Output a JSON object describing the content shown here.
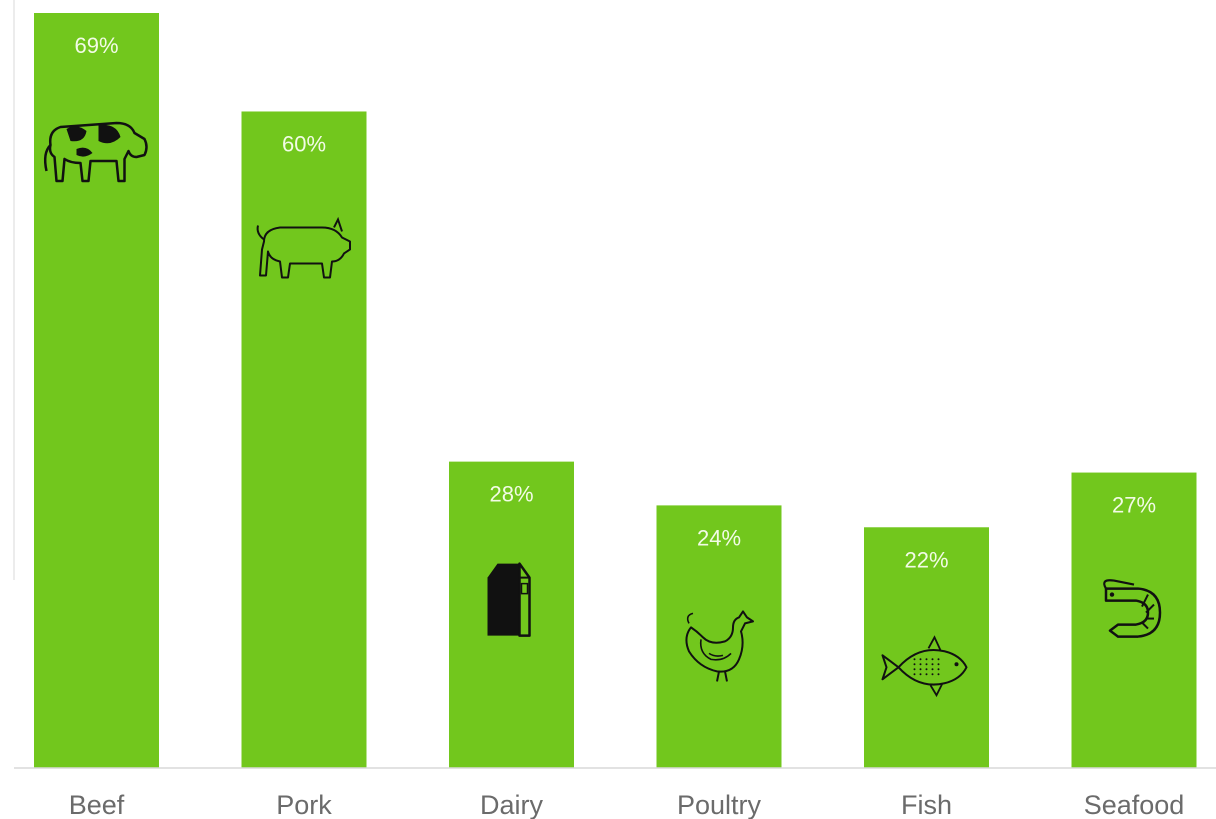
{
  "chart_data": {
    "type": "bar",
    "title": "",
    "xlabel": "",
    "ylabel": "",
    "unit": "%",
    "ylim": [
      0,
      69
    ],
    "grid": false,
    "categories": [
      "Beef",
      "Pork",
      "Dairy",
      "Poultry",
      "Fish",
      "Seafood"
    ],
    "values": [
      69,
      60,
      28,
      24,
      22,
      27
    ],
    "data_labels": [
      "69%",
      "60%",
      "28%",
      "24%",
      "22%",
      "27%"
    ],
    "icons": [
      "cow-icon",
      "pig-icon",
      "milk-carton-icon",
      "chicken-icon",
      "fish-icon",
      "shrimp-icon"
    ],
    "colors": {
      "bar": "#72c71d",
      "value_label": "#f2fbe6",
      "category_label": "#6b6b6b",
      "axis": "#d9d9d9",
      "icon": "#111111"
    }
  }
}
